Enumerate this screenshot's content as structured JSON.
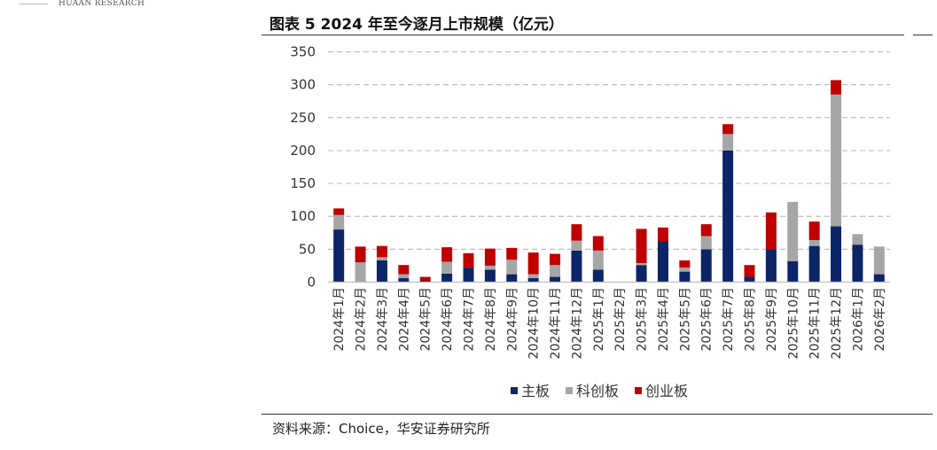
{
  "header": {
    "brand": "HUAAN RESEARCH",
    "figure_title": "图表 5 2024 年至今逐月上市规模（亿元）"
  },
  "footer": {
    "source": "资料来源：Choice，华安证券研究所"
  },
  "colors": {
    "main_board": "#0B2566",
    "star_market": "#A6A6A6",
    "chinext": "#C00000",
    "grid": "#BFBFBF"
  },
  "chart_data": {
    "type": "bar",
    "stacked": true,
    "categories": [
      "2024年1月",
      "2024年2月",
      "2024年3月",
      "2024年4月",
      "2024年5月",
      "2024年6月",
      "2024年7月",
      "2024年8月",
      "2024年9月",
      "2024年10月",
      "2024年11月",
      "2024年12月",
      "2025年1月",
      "2025年2月",
      "2025年3月",
      "2025年4月",
      "2025年5月",
      "2025年6月",
      "2025年7月",
      "2025年8月",
      "2025年9月",
      "2025年10月",
      "2025年11月",
      "2025年12月",
      "2026年1月",
      "2026年2月"
    ],
    "series": [
      {
        "name": "主板",
        "values": [
          80,
          0,
          33,
          6,
          2,
          13,
          22,
          19,
          12,
          6,
          8,
          48,
          19,
          0,
          26,
          62,
          16,
          50,
          200,
          8,
          50,
          32,
          55,
          85,
          57,
          12
        ]
      },
      {
        "name": "科创板",
        "values": [
          22,
          30,
          5,
          6,
          0,
          18,
          0,
          6,
          22,
          6,
          18,
          15,
          29,
          0,
          3,
          0,
          6,
          20,
          25,
          0,
          0,
          90,
          9,
          200,
          16,
          42
        ]
      },
      {
        "name": "创业板",
        "values": [
          10,
          24,
          17,
          14,
          6,
          22,
          22,
          26,
          18,
          33,
          17,
          25,
          22,
          0,
          52,
          21,
          11,
          18,
          15,
          18,
          56,
          0,
          28,
          22,
          0,
          0
        ]
      }
    ],
    "y_ticks": [
      "0",
      "50",
      "100",
      "150",
      "200",
      "250",
      "300",
      "350"
    ],
    "ylim": [
      0,
      350
    ],
    "grid": true,
    "legend_position": "bottom",
    "xlabel": "",
    "ylabel": ""
  }
}
